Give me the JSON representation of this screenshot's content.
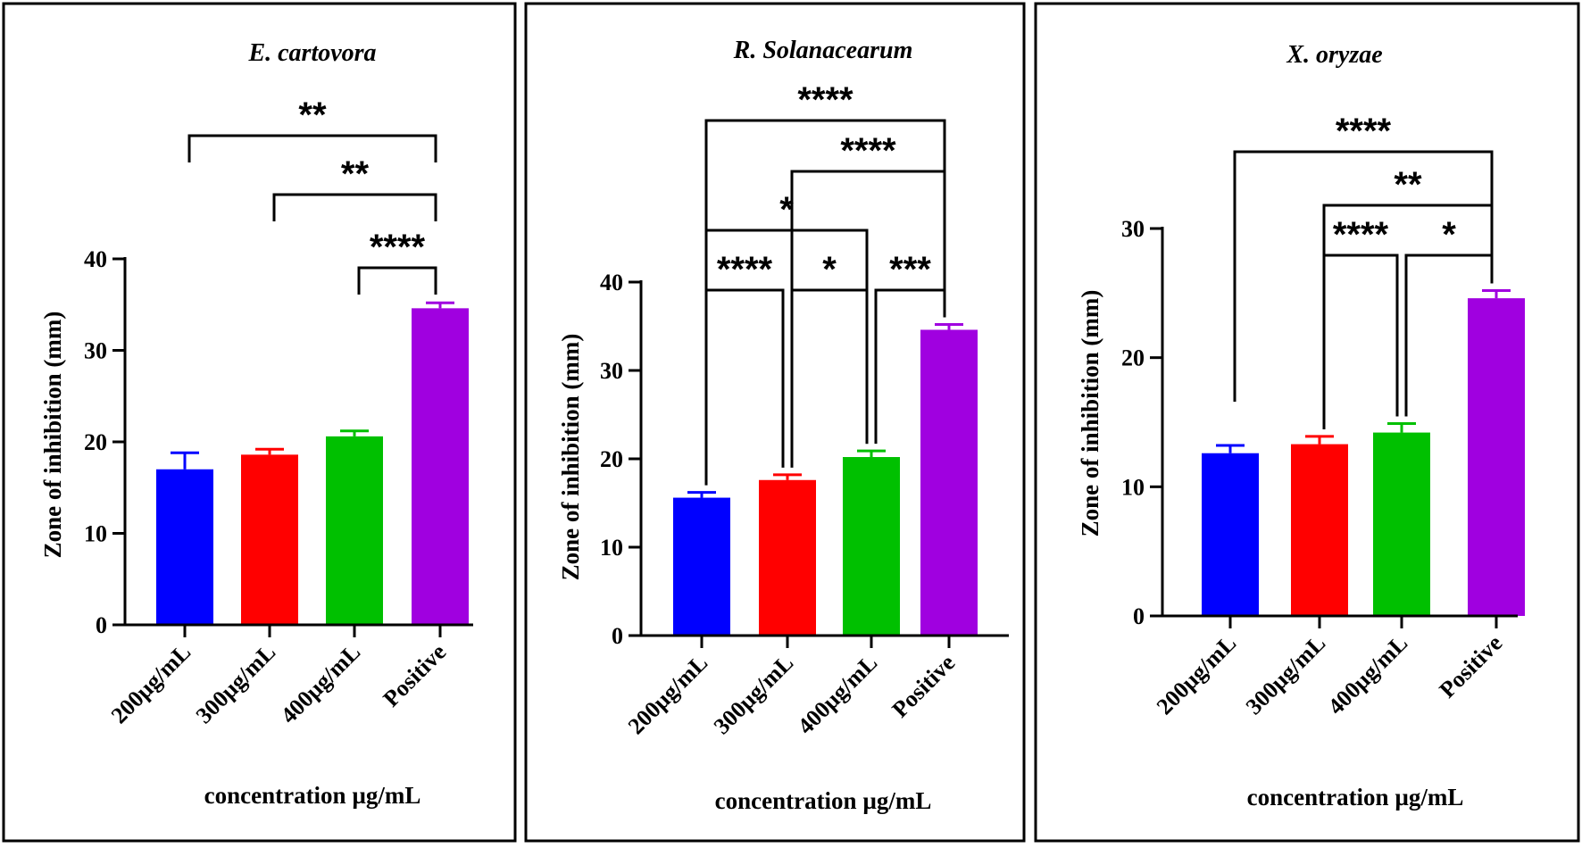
{
  "chart_data": [
    {
      "type": "bar",
      "title": "E. cartovora",
      "xlabel": "concentration µg/mL",
      "ylabel": "Zone of inhibition (mm)",
      "categories": [
        "200µg/mL",
        "300µg/mL",
        "400µg/mL",
        "Positive"
      ],
      "values": [
        17.0,
        18.6,
        20.6,
        34.6
      ],
      "errors": [
        1.8,
        0.6,
        0.6,
        0.6
      ],
      "colors": [
        "#0000ff",
        "#ff0000",
        "#00c000",
        "#a000e0"
      ],
      "ylim": [
        0,
        40
      ],
      "yticks": [
        0,
        10,
        20,
        30,
        40
      ],
      "comparisons": [
        {
          "from": 3,
          "to": 4,
          "label": "****"
        },
        {
          "from": 2,
          "to": 4,
          "label": "**"
        },
        {
          "from": 1,
          "to": 4,
          "label": "**"
        }
      ]
    },
    {
      "type": "bar",
      "title": "R.  Solanacearum",
      "xlabel": "concentration µg/mL",
      "ylabel": "Zone of inhibition (mm)",
      "categories": [
        "200µg/mL",
        "300µg/mL",
        "400µg/mL",
        "Positive"
      ],
      "values": [
        15.6,
        17.6,
        20.2,
        34.6
      ],
      "errors": [
        0.6,
        0.6,
        0.7,
        0.6
      ],
      "colors": [
        "#0000ff",
        "#ff0000",
        "#00c000",
        "#a000e0"
      ],
      "ylim": [
        0,
        40
      ],
      "yticks": [
        0,
        10,
        20,
        30,
        40
      ],
      "comparisons": [
        {
          "from": 1,
          "to": 2,
          "label": "****"
        },
        {
          "from": 2,
          "to": 3,
          "label": "*"
        },
        {
          "from": 3,
          "to": 4,
          "label": "***"
        },
        {
          "from": 1,
          "to": 3,
          "label": "*"
        },
        {
          "from": 2,
          "to": 4,
          "label": "****"
        },
        {
          "from": 1,
          "to": 4,
          "label": "****"
        }
      ]
    },
    {
      "type": "bar",
      "title": "X. oryzae",
      "xlabel": "concentration µg/mL",
      "ylabel": "Zone of inhibition (mm)",
      "categories": [
        "200µg/mL",
        "300µg/mL",
        "400µg/mL",
        "Positive"
      ],
      "values": [
        12.6,
        13.3,
        14.2,
        24.6
      ],
      "errors": [
        0.6,
        0.6,
        0.7,
        0.6
      ],
      "colors": [
        "#0000ff",
        "#ff0000",
        "#00c000",
        "#a000e0"
      ],
      "ylim": [
        0,
        30
      ],
      "yticks": [
        0,
        10,
        20,
        30
      ],
      "comparisons": [
        {
          "from": 2,
          "to": 3,
          "label": "****"
        },
        {
          "from": 3,
          "to": 4,
          "label": "*"
        },
        {
          "from": 2,
          "to": 4,
          "label": "**"
        },
        {
          "from": 1,
          "to": 4,
          "label": "****"
        }
      ]
    }
  ]
}
